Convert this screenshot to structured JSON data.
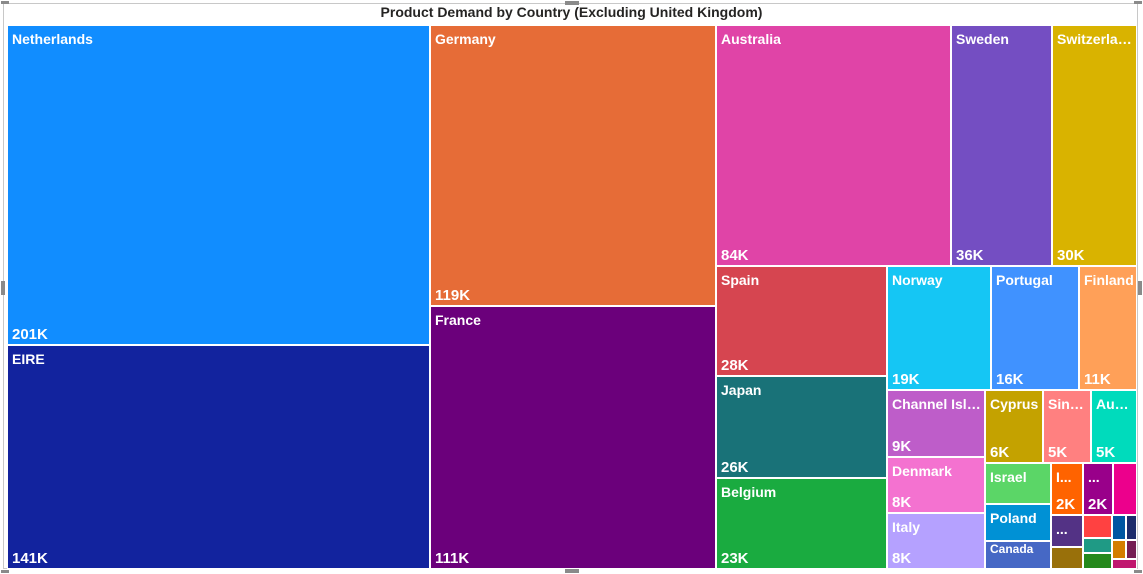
{
  "chart_data": {
    "type": "treemap",
    "title": "Product Demand by Country (Excluding United Kingdom)",
    "items": [
      {
        "name": "Netherlands",
        "label": "201K",
        "value": 201000,
        "color": "#118DFF"
      },
      {
        "name": "EIRE",
        "label": "141K",
        "value": 141000,
        "color": "#12239E"
      },
      {
        "name": "Germany",
        "label": "119K",
        "value": 119000,
        "color": "#E66C37"
      },
      {
        "name": "France",
        "label": "111K",
        "value": 111000,
        "color": "#6B007B"
      },
      {
        "name": "Australia",
        "label": "84K",
        "value": 84000,
        "color": "#E044A7"
      },
      {
        "name": "Sweden",
        "label": "36K",
        "value": 36000,
        "color": "#744EC2"
      },
      {
        "name": "Switzerland",
        "label": "30K",
        "value": 30000,
        "color": "#D9B300"
      },
      {
        "name": "Spain",
        "label": "28K",
        "value": 28000,
        "color": "#D64550"
      },
      {
        "name": "Japan",
        "label": "26K",
        "value": 26000,
        "color": "#197278"
      },
      {
        "name": "Belgium",
        "label": "23K",
        "value": 23000,
        "color": "#1AAB40"
      },
      {
        "name": "Norway",
        "label": "19K",
        "value": 19000,
        "color": "#15C6F4"
      },
      {
        "name": "Portugal",
        "label": "16K",
        "value": 16000,
        "color": "#4092FF"
      },
      {
        "name": "Finland",
        "label": "11K",
        "value": 11000,
        "color": "#FFA058"
      },
      {
        "name": "Channel Islands",
        "label": "9K",
        "value": 9000,
        "color": "#BE5DC9"
      },
      {
        "name": "Denmark",
        "label": "8K",
        "value": 8000,
        "color": "#F472D0"
      },
      {
        "name": "Italy",
        "label": "8K",
        "value": 8000,
        "color": "#B5A1FF"
      },
      {
        "name": "Cyprus",
        "label": "6K",
        "value": 6000,
        "color": "#C4A200"
      },
      {
        "name": "Singapore",
        "label": "5K",
        "value": 5000,
        "color": "#FF8080"
      },
      {
        "name": "Austria",
        "label": "5K",
        "value": 5000,
        "color": "#00DBBC"
      },
      {
        "name": "Israel",
        "label": "",
        "value": null,
        "color": "#5BD667"
      },
      {
        "name": "Poland",
        "label": "",
        "value": null,
        "color": "#0091D5"
      },
      {
        "name": "Canada",
        "label": "",
        "value": null,
        "color": "#4668C5"
      },
      {
        "name": "I...",
        "label": "2K",
        "value": 2000,
        "color": "#FF6300"
      },
      {
        "name": "...",
        "label": "2K",
        "value": 2000,
        "color": "#99008A"
      },
      {
        "name": "",
        "label": "",
        "value": null,
        "color": "#EC008C"
      },
      {
        "name": "...",
        "label": "",
        "value": null,
        "color": "#533285"
      },
      {
        "name": "",
        "label": "",
        "value": null,
        "color": "#99700A"
      },
      {
        "name": "",
        "label": "",
        "value": null,
        "color": "#FF4141"
      },
      {
        "name": "",
        "label": "",
        "value": null,
        "color": "#1F9A85"
      },
      {
        "name": "",
        "label": "",
        "value": null,
        "color": "#25891C"
      },
      {
        "name": "",
        "label": "",
        "value": null,
        "color": "#0057A2"
      },
      {
        "name": "",
        "label": "",
        "value": null,
        "color": "#D47D00"
      },
      {
        "name": "",
        "label": "",
        "value": null,
        "color": "#1D2C6B"
      },
      {
        "name": "",
        "label": "",
        "value": null,
        "color": "#751E54"
      },
      {
        "name": "",
        "label": "",
        "value": null,
        "color": "#C0186F"
      }
    ]
  }
}
